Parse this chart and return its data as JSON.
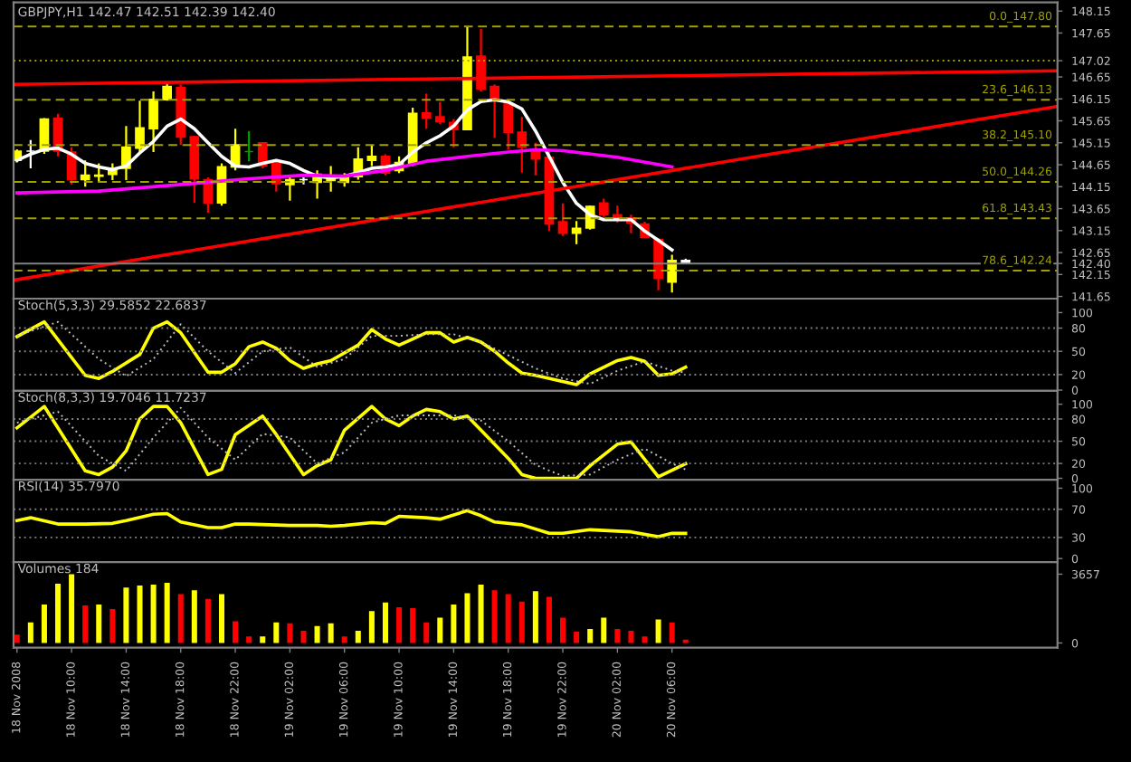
{
  "chart_data": [
    {
      "type": "candlestick",
      "title": "GBPJPY,H1 142.47 142.51 142.39 142.40",
      "x": [
        "2008-11-18T06:00",
        "2008-11-18T07:00",
        "2008-11-18T08:00",
        "2008-11-18T09:00",
        "2008-11-18T10:00",
        "2008-11-18T11:00",
        "2008-11-18T12:00",
        "2008-11-18T13:00",
        "2008-11-18T14:00",
        "2008-11-18T15:00",
        "2008-11-18T16:00",
        "2008-11-18T17:00",
        "2008-11-18T18:00",
        "2008-11-18T19:00",
        "2008-11-18T20:00",
        "2008-11-18T21:00",
        "2008-11-18T22:00",
        "2008-11-18T23:00",
        "2008-11-19T00:00",
        "2008-11-19T01:00",
        "2008-11-19T02:00",
        "2008-11-19T03:00",
        "2008-11-19T04:00",
        "2008-11-19T05:00",
        "2008-11-19T06:00",
        "2008-11-19T07:00",
        "2008-11-19T08:00",
        "2008-11-19T09:00",
        "2008-11-19T10:00",
        "2008-11-19T11:00",
        "2008-11-19T12:00",
        "2008-11-19T13:00",
        "2008-11-19T14:00",
        "2008-11-19T15:00",
        "2008-11-19T16:00",
        "2008-11-19T17:00",
        "2008-11-19T18:00",
        "2008-11-19T19:00",
        "2008-11-19T20:00",
        "2008-11-19T21:00",
        "2008-11-19T22:00",
        "2008-11-19T23:00",
        "2008-11-20T00:00",
        "2008-11-20T01:00",
        "2008-11-20T02:00",
        "2008-11-20T03:00",
        "2008-11-20T04:00",
        "2008-11-20T05:00",
        "2008-11-20T06:00",
        "2008-11-20T07:00"
      ],
      "ohlc": [
        [
          144.75,
          145.0,
          144.7,
          144.96
        ],
        [
          144.96,
          145.21,
          144.57,
          144.96
        ],
        [
          144.96,
          145.71,
          144.9,
          145.69
        ],
        [
          145.71,
          145.81,
          144.84,
          144.96
        ],
        [
          144.94,
          145.05,
          144.2,
          144.31
        ],
        [
          144.31,
          144.75,
          144.15,
          144.41
        ],
        [
          144.39,
          144.68,
          144.25,
          144.41
        ],
        [
          144.43,
          144.68,
          144.3,
          144.57
        ],
        [
          144.57,
          145.53,
          144.3,
          145.05
        ],
        [
          145.03,
          146.11,
          144.94,
          145.49
        ],
        [
          145.47,
          146.32,
          144.94,
          146.14
        ],
        [
          146.13,
          146.54,
          146.11,
          146.43
        ],
        [
          146.41,
          146.48,
          145.1,
          145.28
        ],
        [
          145.29,
          145.31,
          143.78,
          144.33
        ],
        [
          144.31,
          144.36,
          143.56,
          143.78
        ],
        [
          143.78,
          144.68,
          143.72,
          144.6
        ],
        [
          144.6,
          145.47,
          144.52,
          145.1
        ],
        [
          144.95,
          145.42,
          144.73,
          144.95
        ],
        [
          145.15,
          145.15,
          144.57,
          144.62
        ],
        [
          144.68,
          144.73,
          144.04,
          144.22
        ],
        [
          144.2,
          144.41,
          143.83,
          144.31
        ],
        [
          144.31,
          144.36,
          144.2,
          144.31
        ],
        [
          144.25,
          144.52,
          143.88,
          144.43
        ],
        [
          144.29,
          144.62,
          144.04,
          144.38
        ],
        [
          144.25,
          144.46,
          144.15,
          144.38
        ],
        [
          144.38,
          145.05,
          144.31,
          144.78
        ],
        [
          144.75,
          145.1,
          144.62,
          144.84
        ],
        [
          144.84,
          144.89,
          144.41,
          144.46
        ],
        [
          144.52,
          144.84,
          144.46,
          144.7
        ],
        [
          144.68,
          145.95,
          144.62,
          145.82
        ],
        [
          145.83,
          146.27,
          145.47,
          145.72
        ],
        [
          145.74,
          146.08,
          145.58,
          145.63
        ],
        [
          145.61,
          145.69,
          145.05,
          145.45
        ],
        [
          145.45,
          147.8,
          145.45,
          147.1
        ],
        [
          147.12,
          147.75,
          146.32,
          146.38
        ],
        [
          146.43,
          146.48,
          145.26,
          146.11
        ],
        [
          146.03,
          146.11,
          145.0,
          145.39
        ],
        [
          145.39,
          145.74,
          144.47,
          145.05
        ],
        [
          144.96,
          145.15,
          144.41,
          144.78
        ],
        [
          144.82,
          144.99,
          143.14,
          143.3
        ],
        [
          143.35,
          143.77,
          143.03,
          143.09
        ],
        [
          143.09,
          143.37,
          142.84,
          143.2
        ],
        [
          143.21,
          143.72,
          143.17,
          143.7
        ],
        [
          143.78,
          143.88,
          143.46,
          143.51
        ],
        [
          143.51,
          143.72,
          143.33,
          143.44
        ],
        [
          143.44,
          143.51,
          143.09,
          143.33
        ],
        [
          143.3,
          143.35,
          142.98,
          143.0
        ],
        [
          142.95,
          142.98,
          141.79,
          142.06
        ],
        [
          141.98,
          142.6,
          141.74,
          142.47
        ],
        [
          142.47,
          142.51,
          142.39,
          142.4
        ]
      ],
      "colors": [
        "#ffff00",
        "#ffffff",
        "#ffff00",
        "#ff0000",
        "#ff0000",
        "#ffff00",
        "#ffff00",
        "#ffff00",
        "#ffff00",
        "#ffff00",
        "#ffff00",
        "#ffff00",
        "#ff0000",
        "#ff0000",
        "#ff0000",
        "#ffff00",
        "#ffff00",
        "#00a000",
        "#ff0000",
        "#ff0000",
        "#ffff00",
        "#ffffff",
        "#ffff00",
        "#ffff00",
        "#ffff00",
        "#ffff00",
        "#ffff00",
        "#ff0000",
        "#ffff00",
        "#ffff00",
        "#ff0000",
        "#ff0000",
        "#ff0000",
        "#ffff00",
        "#ff0000",
        "#ff0000",
        "#ff0000",
        "#ff0000",
        "#ff0000",
        "#ff0000",
        "#ff0000",
        "#ffff00",
        "#ffff00",
        "#ff0000",
        "#ff0000",
        "#ff0000",
        "#ff0000",
        "#ff0000",
        "#ffff00",
        "#ffffff"
      ],
      "series": [
        {
          "type": "line",
          "color": "#ffffff",
          "values": [
            144.75,
            144.89,
            145.0,
            145.03,
            144.89,
            144.68,
            144.6,
            144.54,
            144.62,
            144.92,
            145.18,
            145.53,
            145.69,
            145.47,
            145.15,
            144.84,
            144.62,
            144.6,
            144.68,
            144.75,
            144.68,
            144.52,
            144.39,
            144.35,
            144.39,
            144.47,
            144.57,
            144.6,
            144.65,
            144.94,
            145.15,
            145.31,
            145.53,
            145.9,
            146.09,
            146.13,
            146.08,
            145.92,
            145.42,
            144.84,
            144.25,
            143.77,
            143.51,
            143.4,
            143.4,
            143.4,
            143.14,
            142.93,
            142.71,
            null
          ]
        },
        {
          "type": "line",
          "color": "#ff00ff",
          "x": [
            "2008-11-18T06:00",
            "2008-11-18T12:00",
            "2008-11-18T18:00",
            "2008-11-18T23:00",
            "2008-11-19T03:00",
            "2008-11-19T06:00",
            "2008-11-19T09:00",
            "2008-11-19T12:00",
            "2008-11-19T15:00",
            "2008-11-19T18:00",
            "2008-11-19T20:00",
            "2008-11-19T22:00",
            "2008-11-20T02:00",
            "2008-11-20T06:00"
          ],
          "values": [
            144.01,
            144.05,
            144.2,
            144.33,
            144.41,
            144.39,
            144.52,
            144.73,
            144.84,
            144.94,
            144.99,
            144.97,
            144.82,
            144.6
          ]
        },
        {
          "type": "line",
          "color": "#ff0000",
          "x": [
            "2008-11-18T05:45",
            "2008-11-21T10:15"
          ],
          "values": [
            146.48,
            146.79
          ]
        },
        {
          "type": "line",
          "color": "#ff0000",
          "x": [
            "2008-11-18T05:45",
            "2008-11-21T10:15"
          ],
          "values": [
            142.02,
            145.98
          ]
        }
      ],
      "ref_lines": [
        {
          "axis": "y",
          "value": 147.8,
          "label": "0.0_147.80",
          "color": "#a0a000",
          "line_style": "dashed"
        },
        {
          "axis": "y",
          "value": 147.02,
          "color": "#a0a000",
          "line_style": "dotted"
        },
        {
          "axis": "y",
          "value": 146.13,
          "label": "23.6_146.13",
          "color": "#a0a000",
          "line_style": "dashed"
        },
        {
          "axis": "y",
          "value": 145.1,
          "label": "38.2_145.10",
          "color": "#a0a000",
          "line_style": "dashed"
        },
        {
          "axis": "y",
          "value": 144.26,
          "label": "50.0_144.26",
          "color": "#a0a000",
          "line_style": "dashed"
        },
        {
          "axis": "y",
          "value": 143.43,
          "label": "61.8_143.43",
          "color": "#a0a000",
          "line_style": "dashed"
        },
        {
          "axis": "y",
          "value": 142.4,
          "color": "#808080",
          "line_style": "solid"
        },
        {
          "axis": "y",
          "value": 142.24,
          "label": "78.6_142.24",
          "color": "#a0a000",
          "line_style": "dashed"
        }
      ],
      "xlim": [
        "2008-11-18T05:45",
        "2008-11-21T10:15"
      ],
      "ylim": [
        141.6,
        148.35
      ],
      "yticks": [
        148.15,
        147.65,
        {
          "value": 147.02,
          "label": "147.02"
        },
        146.65,
        146.15,
        145.65,
        145.15,
        144.65,
        144.15,
        143.65,
        143.15,
        142.65,
        {
          "value": 142.4,
          "label": "142.40"
        },
        142.15,
        141.65
      ],
      "tick_labels": "y"
    },
    {
      "type": "line",
      "title": "Stoch(5,3,3) 29.5852 22.6837",
      "series": [
        {
          "color": "#ffff00",
          "x": [
            "2008-11-18T06:00",
            "2008-11-18T08:00",
            "2008-11-18T11:00",
            "2008-11-18T12:00",
            "2008-11-18T13:00",
            "2008-11-18T15:00",
            "2008-11-18T16:00",
            "2008-11-18T17:00",
            "2008-11-18T18:00",
            "2008-11-18T20:00",
            "2008-11-18T21:00",
            "2008-11-18T22:00",
            "2008-11-18T23:00",
            "2008-11-19T00:00",
            "2008-11-19T01:00",
            "2008-11-19T02:00",
            "2008-11-19T03:00",
            "2008-11-19T04:00",
            "2008-11-19T05:00",
            "2008-11-19T07:00",
            "2008-11-19T08:00",
            "2008-11-19T09:00",
            "2008-11-19T10:00",
            "2008-11-19T11:00",
            "2008-11-19T12:00",
            "2008-11-19T13:00",
            "2008-11-19T14:00",
            "2008-11-19T15:00",
            "2008-11-19T16:00",
            "2008-11-19T17:00",
            "2008-11-19T18:00",
            "2008-11-19T19:00",
            "2008-11-19T20:00",
            "2008-11-19T23:00",
            "2008-11-20T00:00",
            "2008-11-20T02:00",
            "2008-11-20T03:00",
            "2008-11-20T04:00",
            "2008-11-20T05:00",
            "2008-11-20T06:00",
            "2008-11-20T07:00"
          ],
          "values": [
            69,
            88,
            19,
            15,
            24,
            46,
            80,
            88,
            74,
            23,
            23,
            34,
            56,
            62,
            54,
            38,
            28,
            34,
            38,
            58,
            78,
            66,
            58,
            66,
            74,
            74,
            62,
            68,
            62,
            50,
            35,
            22,
            19,
            7,
            21,
            38,
            42,
            37,
            19,
            21,
            29.5852
          ]
        },
        {
          "color": "#c0c0c0",
          "line_style": "dotted",
          "x": [
            "2008-11-18T06:00",
            "2008-11-18T09:00",
            "2008-11-18T12:00",
            "2008-11-18T14:00",
            "2008-11-18T16:00",
            "2008-11-18T18:00",
            "2008-11-18T20:00",
            "2008-11-18T22:00",
            "2008-11-19T00:00",
            "2008-11-19T02:00",
            "2008-11-19T04:00",
            "2008-11-19T06:00",
            "2008-11-19T08:00",
            "2008-11-19T10:00",
            "2008-11-19T12:00",
            "2008-11-19T14:00",
            "2008-11-19T16:00",
            "2008-11-19T18:00",
            "2008-11-19T20:00",
            "2008-11-19T22:00",
            "2008-11-20T00:00",
            "2008-11-20T02:00",
            "2008-11-20T04:00",
            "2008-11-20T06:00",
            "2008-11-20T07:00"
          ],
          "values": [
            70,
            88,
            40,
            18,
            40,
            85,
            50,
            22,
            50,
            55,
            30,
            40,
            70,
            70,
            72,
            72,
            62,
            45,
            28,
            15,
            8,
            25,
            37,
            25,
            22.6837
          ]
        }
      ],
      "ref_lines": [
        {
          "axis": "y",
          "value": 80,
          "color": "#808080",
          "line_style": "dotted"
        },
        {
          "axis": "y",
          "value": 50,
          "color": "#808080",
          "line_style": "dotted"
        },
        {
          "axis": "y",
          "value": 20,
          "color": "#808080",
          "line_style": "dotted"
        }
      ],
      "xlim": [
        "2008-11-18T05:45",
        "2008-11-21T10:15"
      ],
      "ylim": [
        -1,
        118
      ],
      "yticks": [
        100,
        80,
        50,
        20,
        0
      ],
      "tick_labels": "y"
    },
    {
      "type": "line",
      "title": "Stoch(8,3,3) 19.7046 11.7237",
      "series": [
        {
          "color": "#ffff00",
          "x": [
            "2008-11-18T06:00",
            "2008-11-18T08:00",
            "2008-11-18T11:00",
            "2008-11-18T12:00",
            "2008-11-18T13:00",
            "2008-11-18T14:00",
            "2008-11-18T15:00",
            "2008-11-18T16:00",
            "2008-11-18T17:00",
            "2008-11-18T18:00",
            "2008-11-18T20:00",
            "2008-11-18T21:00",
            "2008-11-18T22:00",
            "2008-11-19T00:00",
            "2008-11-19T01:00",
            "2008-11-19T03:00",
            "2008-11-19T04:00",
            "2008-11-19T05:00",
            "2008-11-19T06:00",
            "2008-11-19T08:00",
            "2008-11-19T09:00",
            "2008-11-19T10:00",
            "2008-11-19T11:00",
            "2008-11-19T12:00",
            "2008-11-19T13:00",
            "2008-11-19T14:00",
            "2008-11-19T15:00",
            "2008-11-19T16:00",
            "2008-11-19T18:00",
            "2008-11-19T19:00",
            "2008-11-19T20:00",
            "2008-11-19T23:00",
            "2008-11-20T00:00",
            "2008-11-20T02:00",
            "2008-11-20T03:00",
            "2008-11-20T05:00",
            "2008-11-20T07:00"
          ],
          "values": [
            68,
            97,
            10,
            5,
            15,
            37,
            80,
            97,
            97,
            75,
            5,
            12,
            59,
            84,
            59,
            5,
            17,
            25,
            65,
            97,
            80,
            71,
            84,
            93,
            90,
            80,
            84,
            65,
            27,
            5,
            0,
            0,
            17,
            46,
            49,
            2,
            19.7046
          ]
        },
        {
          "color": "#c0c0c0",
          "line_style": "dotted",
          "x": [
            "2008-11-18T06:00",
            "2008-11-18T09:00",
            "2008-11-18T12:00",
            "2008-11-18T14:00",
            "2008-11-18T16:00",
            "2008-11-18T18:00",
            "2008-11-18T20:00",
            "2008-11-18T22:00",
            "2008-11-19T00:00",
            "2008-11-19T02:00",
            "2008-11-19T04:00",
            "2008-11-19T06:00",
            "2008-11-19T08:00",
            "2008-11-19T10:00",
            "2008-11-19T12:00",
            "2008-11-19T14:00",
            "2008-11-19T16:00",
            "2008-11-19T18:00",
            "2008-11-19T20:00",
            "2008-11-19T22:00",
            "2008-11-20T00:00",
            "2008-11-20T02:00",
            "2008-11-20T04:00",
            "2008-11-20T06:00",
            "2008-11-20T07:00"
          ],
          "values": [
            75,
            90,
            30,
            10,
            55,
            95,
            55,
            25,
            60,
            55,
            20,
            35,
            75,
            85,
            85,
            85,
            78,
            50,
            18,
            3,
            5,
            25,
            40,
            20,
            11.7237
          ]
        }
      ],
      "ref_lines": [
        {
          "axis": "y",
          "value": 80,
          "color": "#808080",
          "line_style": "dotted"
        },
        {
          "axis": "y",
          "value": 50,
          "color": "#808080",
          "line_style": "dotted"
        },
        {
          "axis": "y",
          "value": 20,
          "color": "#808080",
          "line_style": "dotted"
        }
      ],
      "xlim": [
        "2008-11-18T05:45",
        "2008-11-21T10:15"
      ],
      "ylim": [
        -2,
        118
      ],
      "yticks": [
        100,
        80,
        50,
        20,
        0
      ],
      "tick_labels": "y"
    },
    {
      "type": "line",
      "title": "RSI(14) 35.7970",
      "series": [
        {
          "color": "#ffff00",
          "x": [
            "2008-11-18T06:00",
            "2008-11-18T07:00",
            "2008-11-18T09:00",
            "2008-11-18T11:00",
            "2008-11-18T13:00",
            "2008-11-18T14:00",
            "2008-11-18T16:00",
            "2008-11-18T17:00",
            "2008-11-18T18:00",
            "2008-11-18T20:00",
            "2008-11-18T21:00",
            "2008-11-18T22:00",
            "2008-11-18T23:00",
            "2008-11-19T02:00",
            "2008-11-19T04:00",
            "2008-11-19T05:00",
            "2008-11-19T06:00",
            "2008-11-19T08:00",
            "2008-11-19T09:00",
            "2008-11-19T10:00",
            "2008-11-19T12:00",
            "2008-11-19T13:00",
            "2008-11-19T15:00",
            "2008-11-19T16:00",
            "2008-11-19T17:00",
            "2008-11-19T19:00",
            "2008-11-19T21:00",
            "2008-11-19T22:00",
            "2008-11-20T00:00",
            "2008-11-20T02:00",
            "2008-11-20T03:00",
            "2008-11-20T05:00",
            "2008-11-20T06:00",
            "2008-11-20T07:00"
          ],
          "values": [
            54,
            58,
            49,
            49,
            50,
            54,
            63,
            64,
            52,
            44,
            44,
            49,
            49,
            47,
            47,
            46,
            47,
            51,
            50,
            60,
            58,
            56,
            68,
            61,
            52,
            48,
            36,
            36,
            41,
            39,
            38,
            31,
            36,
            35.797
          ]
        }
      ],
      "ref_lines": [
        {
          "axis": "y",
          "value": 70,
          "color": "#808080",
          "line_style": "dotted"
        },
        {
          "axis": "y",
          "value": 30,
          "color": "#808080",
          "line_style": "dotted"
        }
      ],
      "xlim": [
        "2008-11-18T05:45",
        "2008-11-21T10:15"
      ],
      "ylim": [
        -5,
        112
      ],
      "yticks": [
        100,
        70,
        30,
        0
      ],
      "tick_labels": "y"
    },
    {
      "type": "bar",
      "title": "Volumes 184",
      "x": [
        "2008-11-18T06:00",
        "2008-11-18T07:00",
        "2008-11-18T08:00",
        "2008-11-18T09:00",
        "2008-11-18T10:00",
        "2008-11-18T11:00",
        "2008-11-18T12:00",
        "2008-11-18T13:00",
        "2008-11-18T14:00",
        "2008-11-18T15:00",
        "2008-11-18T16:00",
        "2008-11-18T17:00",
        "2008-11-18T18:00",
        "2008-11-18T19:00",
        "2008-11-18T20:00",
        "2008-11-18T21:00",
        "2008-11-18T22:00",
        "2008-11-18T23:00",
        "2008-11-19T00:00",
        "2008-11-19T01:00",
        "2008-11-19T02:00",
        "2008-11-19T03:00",
        "2008-11-19T04:00",
        "2008-11-19T05:00",
        "2008-11-19T06:00",
        "2008-11-19T07:00",
        "2008-11-19T08:00",
        "2008-11-19T09:00",
        "2008-11-19T10:00",
        "2008-11-19T11:00",
        "2008-11-19T12:00",
        "2008-11-19T13:00",
        "2008-11-19T14:00",
        "2008-11-19T15:00",
        "2008-11-19T16:00",
        "2008-11-19T17:00",
        "2008-11-19T18:00",
        "2008-11-19T19:00",
        "2008-11-19T20:00",
        "2008-11-19T21:00",
        "2008-11-19T22:00",
        "2008-11-19T23:00",
        "2008-11-20T00:00",
        "2008-11-20T01:00",
        "2008-11-20T02:00",
        "2008-11-20T03:00",
        "2008-11-20T04:00",
        "2008-11-20T05:00",
        "2008-11-20T06:00",
        "2008-11-20T07:00"
      ],
      "values": [
        450,
        1100,
        2050,
        3150,
        3650,
        2000,
        2050,
        1800,
        2950,
        3050,
        3100,
        3200,
        2600,
        2800,
        2350,
        2600,
        1150,
        350,
        350,
        1100,
        1050,
        650,
        900,
        1050,
        350,
        650,
        1700,
        2150,
        1900,
        1850,
        1100,
        1350,
        2050,
        2650,
        3100,
        2800,
        2600,
        2200,
        2750,
        2450,
        1350,
        600,
        750,
        1350,
        750,
        650,
        350,
        1250,
        1100,
        184
      ],
      "colors": [
        "#ff0000",
        "#ffff00",
        "#ffff00",
        "#ffff00",
        "#ffff00",
        "#ff0000",
        "#ffff00",
        "#ff0000",
        "#ffff00",
        "#ffff00",
        "#ffff00",
        "#ffff00",
        "#ff0000",
        "#ffff00",
        "#ff0000",
        "#ffff00",
        "#ff0000",
        "#ff0000",
        "#ffff00",
        "#ffff00",
        "#ff0000",
        "#ff0000",
        "#ffff00",
        "#ffff00",
        "#ff0000",
        "#ffff00",
        "#ffff00",
        "#ffff00",
        "#ff0000",
        "#ff0000",
        "#ff0000",
        "#ffff00",
        "#ffff00",
        "#ffff00",
        "#ffff00",
        "#ff0000",
        "#ff0000",
        "#ff0000",
        "#ffff00",
        "#ff0000",
        "#ff0000",
        "#ff0000",
        "#ffff00",
        "#ffff00",
        "#ff0000",
        "#ff0000",
        "#ff0000",
        "#ffff00",
        "#ff0000",
        "#ff0000"
      ],
      "xlim": [
        "2008-11-18T05:45",
        "2008-11-21T10:15"
      ],
      "ylim": [
        -250,
        4300
      ],
      "yticks": [
        3657,
        0
      ],
      "xticks": [
        {
          "value": "2008-11-18T06:00",
          "label": "18 Nov 2008"
        },
        {
          "value": "2008-11-18T10:00",
          "label": "18 Nov 10:00"
        },
        {
          "value": "2008-11-18T14:00",
          "label": "18 Nov 14:00"
        },
        {
          "value": "2008-11-18T18:00",
          "label": "18 Nov 18:00"
        },
        {
          "value": "2008-11-18T22:00",
          "label": "18 Nov 22:00"
        },
        {
          "value": "2008-11-19T02:00",
          "label": "19 Nov 02:00"
        },
        {
          "value": "2008-11-19T06:00",
          "label": "19 Nov 06:00"
        },
        {
          "value": "2008-11-19T10:00",
          "label": "19 Nov 10:00"
        },
        {
          "value": "2008-11-19T14:00",
          "label": "19 Nov 14:00"
        },
        {
          "value": "2008-11-19T18:00",
          "label": "19 Nov 18:00"
        },
        {
          "value": "2008-11-19T22:00",
          "label": "19 Nov 22:00"
        },
        {
          "value": "2008-11-20T02:00",
          "label": "20 Nov 02:00"
        },
        {
          "value": "2008-11-20T06:00",
          "label": "20 Nov 06:00"
        }
      ]
    }
  ]
}
